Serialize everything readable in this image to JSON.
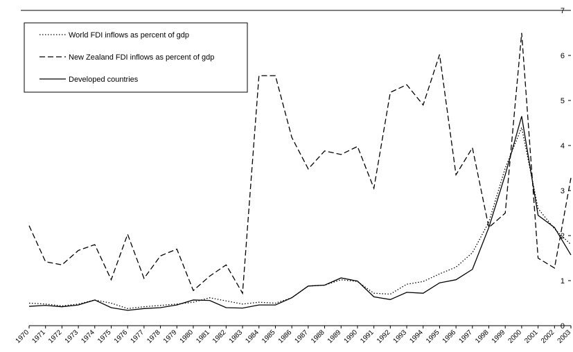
{
  "chart_data": {
    "type": "line",
    "categories": [
      "1970",
      "1971",
      "1972",
      "1973",
      "1974",
      "1975",
      "1976",
      "1977",
      "1978",
      "1979",
      "1980",
      "1981",
      "1982",
      "1983",
      "1984",
      "1985",
      "1986",
      "1987",
      "1988",
      "1989",
      "1990",
      "1991",
      "1992",
      "1993",
      "1994",
      "1995",
      "1996",
      "1997",
      "1998",
      "1999",
      "2000",
      "2001",
      "2002",
      "2003"
    ],
    "series": [
      {
        "name": "World FDI inflows as percent of gdp",
        "color": "#000000",
        "dash": "dotted",
        "values": [
          0.5,
          0.48,
          0.44,
          0.48,
          0.57,
          0.5,
          0.38,
          0.42,
          0.45,
          0.48,
          0.52,
          0.62,
          0.55,
          0.48,
          0.52,
          0.5,
          0.62,
          0.88,
          0.9,
          1.02,
          0.98,
          0.72,
          0.7,
          0.92,
          0.98,
          1.15,
          1.3,
          1.62,
          2.3,
          3.5,
          4.4,
          2.6,
          2.15,
          1.8
        ]
      },
      {
        "name": "New Zealand FDI inflows as percent of gdp",
        "color": "#000000",
        "dash": "dashed",
        "values": [
          2.22,
          1.42,
          1.35,
          1.67,
          1.8,
          1.02,
          2.03,
          1.05,
          1.55,
          1.7,
          0.78,
          1.1,
          1.35,
          0.72,
          5.55,
          5.55,
          4.18,
          3.48,
          3.88,
          3.8,
          3.98,
          3.05,
          5.18,
          5.35,
          4.9,
          6.02,
          3.35,
          3.95,
          2.18,
          2.5,
          6.5,
          1.5,
          1.28,
          3.28
        ]
      },
      {
        "name": "Developed countries",
        "color": "#000000",
        "dash": "solid",
        "values": [
          0.43,
          0.45,
          0.42,
          0.46,
          0.57,
          0.4,
          0.34,
          0.38,
          0.4,
          0.46,
          0.57,
          0.56,
          0.4,
          0.39,
          0.46,
          0.46,
          0.62,
          0.88,
          0.9,
          1.06,
          0.99,
          0.64,
          0.58,
          0.74,
          0.72,
          0.95,
          1.02,
          1.25,
          2.18,
          3.35,
          4.65,
          2.45,
          2.18,
          1.57
        ]
      }
    ],
    "ylim": [
      0,
      7
    ],
    "yticks": [
      0,
      1,
      2,
      3,
      4,
      5,
      6,
      7
    ],
    "grid": false,
    "legend": "top-left"
  }
}
